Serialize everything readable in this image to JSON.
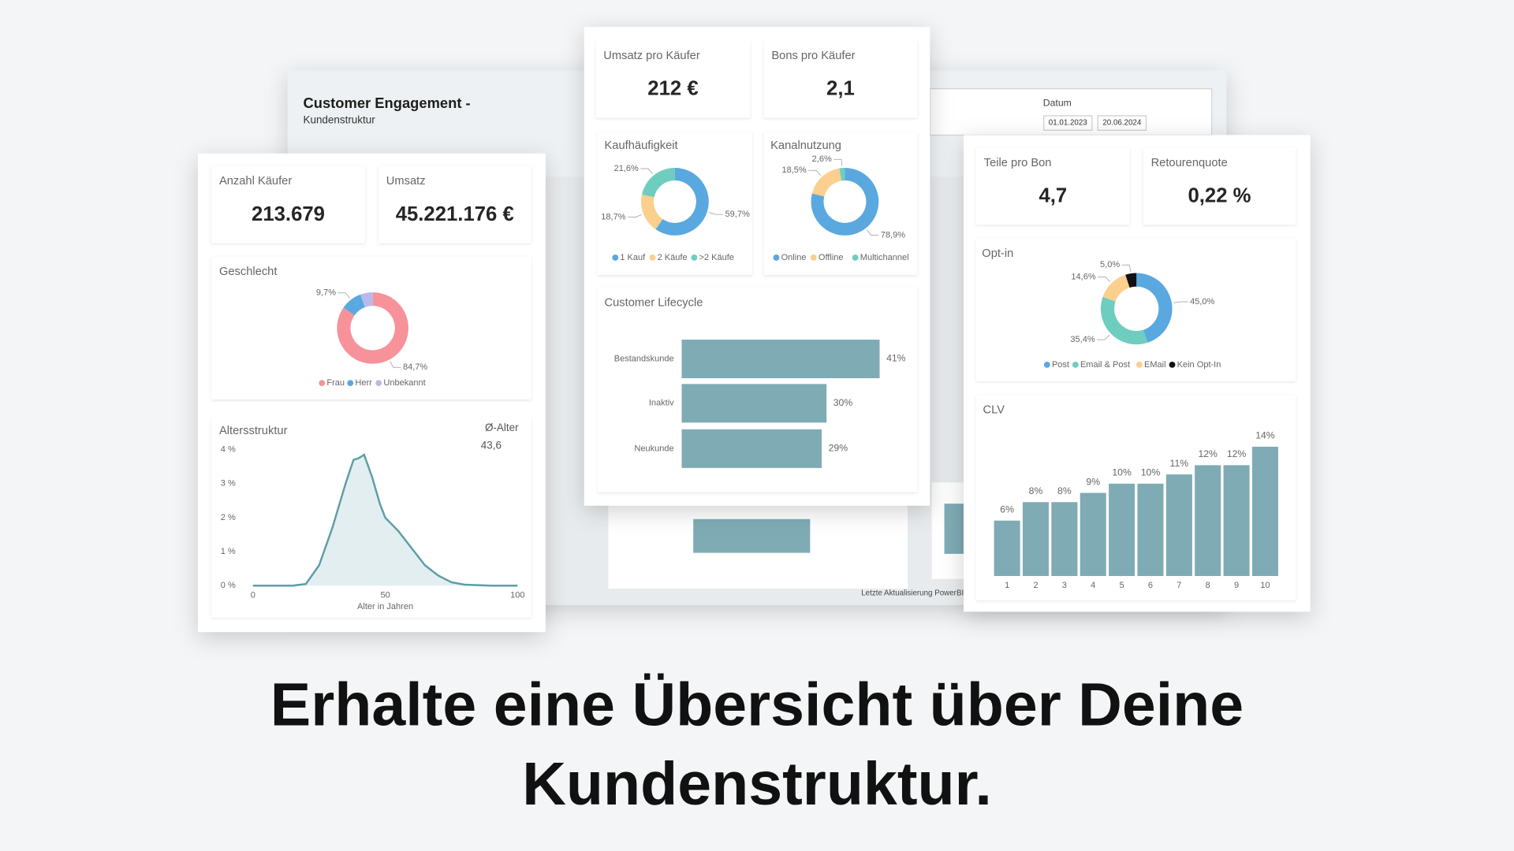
{
  "headline": [
    "Erhalte eine Übersicht über Deine",
    "Kundenstruktur."
  ],
  "dashboard": {
    "title": "Customer Engagement -",
    "subtitle": "Kundenstruktur",
    "date_label": "Datum",
    "date_from": "01.01.2023",
    "date_to": "20.06.2024",
    "footer": "Letzte Aktualisierung PowerBI"
  },
  "kpis": [
    {
      "label": "Anzahl Käufer",
      "value": "213.679"
    },
    {
      "label": "Umsatz",
      "value": "45.221.176 €"
    },
    {
      "label": "Umsatz pro Käufer",
      "value": "212 €"
    },
    {
      "label": "Bons pro Käufer",
      "value": "2,1"
    },
    {
      "label": "Teile pro Bon",
      "value": "4,7"
    },
    {
      "label": "Retourenquote",
      "value": "0,22 %"
    }
  ],
  "chart_data": [
    {
      "type": "pie",
      "title": "Geschlecht",
      "categories": [
        "Frau",
        "Herr",
        "Unbekannt"
      ],
      "values": [
        84.7,
        9.7,
        5.6
      ],
      "value_labels": [
        "84,7%",
        "9,7%",
        null
      ],
      "colors": [
        "#f7929a",
        "#5aa8e0",
        "#b9b9ec"
      ]
    },
    {
      "type": "line",
      "title": "Altersstruktur",
      "annotations": [
        "Ø-Alter",
        "43,6"
      ],
      "xlabel": "Alter in Jahren",
      "color": "#5d9da6",
      "x": [
        0,
        5,
        10,
        15,
        20,
        25,
        30,
        35,
        38,
        40,
        42,
        45,
        48,
        50,
        55,
        60,
        65,
        70,
        75,
        80,
        90,
        100
      ],
      "values": [
        0,
        0,
        0,
        0,
        0.05,
        0.6,
        1.7,
        3.0,
        3.7,
        3.75,
        3.85,
        3.2,
        2.4,
        2.0,
        1.6,
        1.1,
        0.6,
        0.3,
        0.1,
        0.03,
        0,
        0
      ],
      "xlim": [
        0,
        100
      ],
      "ylim": [
        0,
        4
      ],
      "xticks": [
        0,
        50,
        100
      ],
      "yticks": [
        {
          "value": 0,
          "label": "0 %"
        },
        {
          "value": 1,
          "label": "1 %"
        },
        {
          "value": 2,
          "label": "2 %"
        },
        {
          "value": 3,
          "label": "3 %"
        },
        {
          "value": 4,
          "label": "4 %"
        }
      ]
    },
    {
      "type": "pie",
      "title": "Kaufhäufigkeit",
      "categories": [
        "1 Kauf",
        "2 Käufe",
        ">2 Käufe"
      ],
      "values": [
        59.7,
        18.7,
        21.6
      ],
      "value_labels": [
        "59,7%",
        "18,7%",
        "21,6%"
      ],
      "colors": [
        "#5aa8e0",
        "#fbcf8e",
        "#6fcdbf"
      ]
    },
    {
      "type": "pie",
      "title": "Kanalnutzung",
      "categories": [
        "Online",
        "Offline",
        "Multichannel"
      ],
      "values": [
        78.9,
        18.5,
        2.6
      ],
      "value_labels": [
        "78,9%",
        "18,5%",
        "2,6%"
      ],
      "colors": [
        "#5aa8e0",
        "#fbcf8e",
        "#6fcdbf"
      ]
    },
    {
      "type": "hbar",
      "title": "Customer Lifecycle",
      "categories": [
        "Bestandskunde",
        "Inaktiv",
        "Neukunde"
      ],
      "values": [
        41,
        30,
        29
      ],
      "value_labels": [
        "41%",
        "30%",
        "29%"
      ],
      "color": "#7fabb5"
    },
    {
      "type": "pie",
      "title": "Opt-in",
      "categories": [
        "Post",
        "Email & Post",
        "EMail",
        "Kein Opt-In"
      ],
      "values": [
        45.0,
        35.4,
        14.6,
        5.0
      ],
      "value_labels": [
        "45,0%",
        "35,4%",
        "14,6%",
        "5,0%"
      ],
      "colors": [
        "#5aa8e0",
        "#6fcdbf",
        "#fbcf8e",
        "#111111"
      ]
    },
    {
      "type": "bar",
      "title": "CLV",
      "categories": [
        "1",
        "2",
        "3",
        "4",
        "5",
        "6",
        "7",
        "8",
        "9",
        "10"
      ],
      "values": [
        6,
        8,
        8,
        9,
        10,
        10,
        11,
        12,
        12,
        14
      ],
      "value_labels": [
        "6%",
        "8%",
        "8%",
        "9%",
        "10%",
        "10%",
        "11%",
        "12%",
        "12%",
        "14%"
      ],
      "color": "#7fabb5"
    }
  ]
}
